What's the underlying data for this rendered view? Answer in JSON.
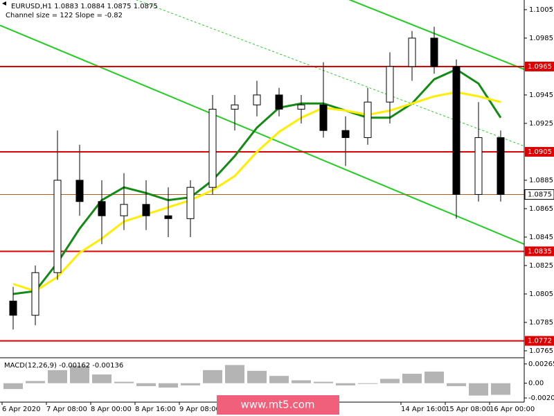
{
  "chart_data": {
    "type": "candlestick",
    "title": "EURUSD,H1  1.0883 1.0884 1.0875 1.0875",
    "subtitle": "Channel size = 122 Slope = -0.82",
    "x_labels": [
      "6 Apr 2020",
      "7 Apr 08:00",
      "8 Apr 00:00",
      "8 Apr 16:00",
      "9 Apr 08:00",
      null,
      null,
      null,
      null,
      "14 Apr 16:00",
      "15 Apr 08:00",
      "16 Apr 00:00"
    ],
    "open": [
      1.08,
      1.079,
      1.082,
      1.0885,
      1.087,
      1.086,
      1.0868,
      1.086,
      1.0858,
      1.088,
      1.0935,
      1.0938,
      1.0945,
      1.0935,
      1.0938,
      1.092,
      1.0915,
      1.094,
      1.0965,
      1.0985,
      1.0965,
      1.0875,
      1.0915
    ],
    "high": [
      1.081,
      1.0825,
      1.092,
      1.091,
      1.0885,
      1.089,
      1.0885,
      1.088,
      1.0885,
      1.0945,
      1.0945,
      1.0955,
      1.095,
      1.0945,
      1.0968,
      1.093,
      1.095,
      1.0975,
      1.099,
      1.0993,
      1.097,
      1.094,
      1.092
    ],
    "low": [
      1.078,
      1.0783,
      1.0815,
      1.086,
      1.084,
      1.085,
      1.085,
      1.0845,
      1.0845,
      1.0875,
      1.092,
      1.093,
      1.093,
      1.0925,
      1.0915,
      1.0895,
      1.091,
      1.0925,
      1.0955,
      1.096,
      1.0858,
      1.087,
      1.087
    ],
    "close": [
      1.079,
      1.082,
      1.0885,
      1.087,
      1.086,
      1.0868,
      1.086,
      1.0858,
      1.088,
      1.0935,
      1.0938,
      1.0945,
      1.0935,
      1.0938,
      1.092,
      1.0915,
      1.094,
      1.0965,
      1.0985,
      1.0965,
      1.0875,
      1.0915,
      1.0875
    ],
    "up_color": "#ffffff",
    "down_color": "#000000",
    "candle_outline": "#000000",
    "overlays": [
      {
        "color": "#138a13",
        "values": [
          1.0805,
          1.0807,
          1.0827,
          1.0851,
          1.0871,
          1.088,
          1.0876,
          1.0871,
          1.0873,
          1.0885,
          1.0902,
          1.0922,
          1.0936,
          1.0939,
          1.0939,
          1.0934,
          1.0929,
          1.0929,
          1.0939,
          1.0956,
          1.0963,
          1.0953,
          1.0929
        ]
      },
      {
        "color": "#ffee00",
        "values": [
          1.0812,
          1.0807,
          1.0817,
          1.0834,
          1.0844,
          1.0856,
          1.0861,
          1.0866,
          1.0871,
          1.0878,
          1.0888,
          1.0905,
          1.0919,
          1.0929,
          1.0936,
          1.0934,
          1.0931,
          1.0934,
          1.0939,
          1.0944,
          1.0947,
          1.0944,
          1.094
        ]
      }
    ],
    "trendlines": [
      {
        "color": "#22cc22",
        "start": 1.0994,
        "end": 1.084,
        "style": "solid"
      },
      {
        "color": "#22cc22",
        "start": 1.111,
        "end": 1.0963,
        "style": "solid"
      },
      {
        "color": "#22cc22",
        "start": 1.1048,
        "end": 1.0909,
        "style": "dotted"
      }
    ],
    "levels": [
      1.0965,
      1.0905,
      1.0835,
      1.0772
    ],
    "level_color": "#dd0000",
    "current_price": 1.0875,
    "ylim": [
      1.07606,
      1.10118
    ],
    "yticks": [
      1.1005,
      1.0985,
      1.0945,
      1.0925,
      1.0885,
      1.0865,
      1.0845,
      1.0825,
      1.0805,
      1.0785,
      1.0765
    ],
    "macd": {
      "label": "MACD(12,26,9) -0.00162 -0.00136",
      "color": "#b4b4b4",
      "values": [
        -0.0008,
        0.0003,
        0.0018,
        0.0024,
        0.0012,
        0.0002,
        -0.0004,
        -0.0006,
        -0.0003,
        0.0018,
        0.0025,
        0.0017,
        0.001,
        0.0004,
        0.0002,
        -0.0003,
        -0.0001,
        0.0006,
        0.0013,
        0.0016,
        -0.0004,
        -0.0017,
        -0.0016
      ],
      "ylim": [
        -0.0026,
        0.0034
      ],
      "yticks": [
        0.00265,
        {
          "value": 0,
          "label": "0.00"
        },
        -0.00203
      ]
    },
    "watermark": "www.mt5.com"
  }
}
